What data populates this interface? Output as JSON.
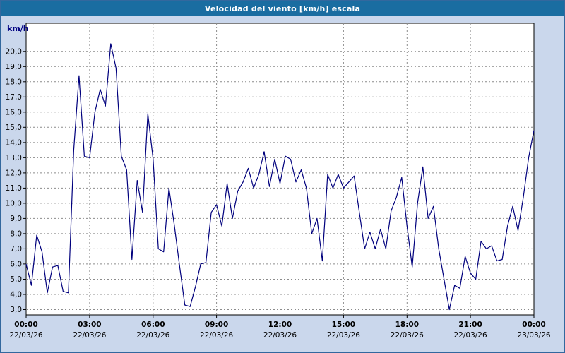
{
  "window": {
    "title": "Velocidad del viento [km/h] escala"
  },
  "chart_data": {
    "type": "line",
    "title": "Velocidad del viento [km/h] escala",
    "xlabel": "",
    "ylabel": "km/h",
    "line_color": "#00007d",
    "grid": "dashed",
    "legend_position": "none",
    "plot_background": "#ffffff",
    "page_background": "#cad7ec",
    "title_bar_color": "#1a6da1",
    "x_hours_range": [
      0,
      24
    ],
    "ylim": [
      2.65,
      21.85
    ],
    "y_ticks": [
      {
        "value": 3,
        "label": "3,0"
      },
      {
        "value": 4,
        "label": "4,0"
      },
      {
        "value": 5,
        "label": "5,0"
      },
      {
        "value": 6,
        "label": "6,0"
      },
      {
        "value": 7,
        "label": "7,0"
      },
      {
        "value": 8,
        "label": "8,0"
      },
      {
        "value": 9,
        "label": "9,0"
      },
      {
        "value": 10,
        "label": "10,0"
      },
      {
        "value": 11,
        "label": "11,0"
      },
      {
        "value": 12,
        "label": "12,0"
      },
      {
        "value": 13,
        "label": "13,0"
      },
      {
        "value": 14,
        "label": "14,0"
      },
      {
        "value": 15,
        "label": "15,0"
      },
      {
        "value": 16,
        "label": "16,0"
      },
      {
        "value": 17,
        "label": "17,0"
      },
      {
        "value": 18,
        "label": "18,0"
      },
      {
        "value": 19,
        "label": "19,0"
      },
      {
        "value": 20,
        "label": "20,0"
      }
    ],
    "x_ticks": [
      {
        "hour": 0,
        "label": "00:00",
        "date": "22/03/26"
      },
      {
        "hour": 3,
        "label": "03:00",
        "date": "22/03/26"
      },
      {
        "hour": 6,
        "label": "06:00",
        "date": "22/03/26"
      },
      {
        "hour": 9,
        "label": "09:00",
        "date": "22/03/26"
      },
      {
        "hour": 12,
        "label": "12:00",
        "date": "22/03/26"
      },
      {
        "hour": 15,
        "label": "15:00",
        "date": "22/03/26"
      },
      {
        "hour": 18,
        "label": "18:00",
        "date": "22/03/26"
      },
      {
        "hour": 21,
        "label": "21:00",
        "date": "22/03/26"
      },
      {
        "hour": 24,
        "label": "00:00",
        "date": "23/03/26"
      }
    ],
    "series": [
      {
        "name": "Velocidad del viento",
        "unit": "km/h",
        "start_hour": 0,
        "interval_minutes": 15,
        "values": [
          6.0,
          4.6,
          7.9,
          6.8,
          4.1,
          5.8,
          5.9,
          4.2,
          4.1,
          13.5,
          18.4,
          13.1,
          13.0,
          16.0,
          17.5,
          16.4,
          20.5,
          18.9,
          13.1,
          12.2,
          6.3,
          11.5,
          9.4,
          15.9,
          12.9,
          7.0,
          6.8,
          11.0,
          8.6,
          5.9,
          3.3,
          3.2,
          4.5,
          6.0,
          6.1,
          9.4,
          9.9,
          8.5,
          11.3,
          9.0,
          10.8,
          11.4,
          12.3,
          11.0,
          11.9,
          13.4,
          11.1,
          12.9,
          11.3,
          13.1,
          12.9,
          11.4,
          12.2,
          11.0,
          8.0,
          9.0,
          6.2,
          11.9,
          11.0,
          11.9,
          11.0,
          11.4,
          11.8,
          9.4,
          7.0,
          8.1,
          7.0,
          8.3,
          7.0,
          9.5,
          10.4,
          11.7,
          8.5,
          5.8,
          10.0,
          12.4,
          9.0,
          9.8,
          7.0,
          5.0,
          3.0,
          4.6,
          4.4,
          6.5,
          5.4,
          5.0,
          7.5,
          7.0,
          7.2,
          6.2,
          6.3,
          8.5,
          9.8,
          8.2,
          10.4,
          13.0,
          14.8
        ]
      }
    ]
  }
}
